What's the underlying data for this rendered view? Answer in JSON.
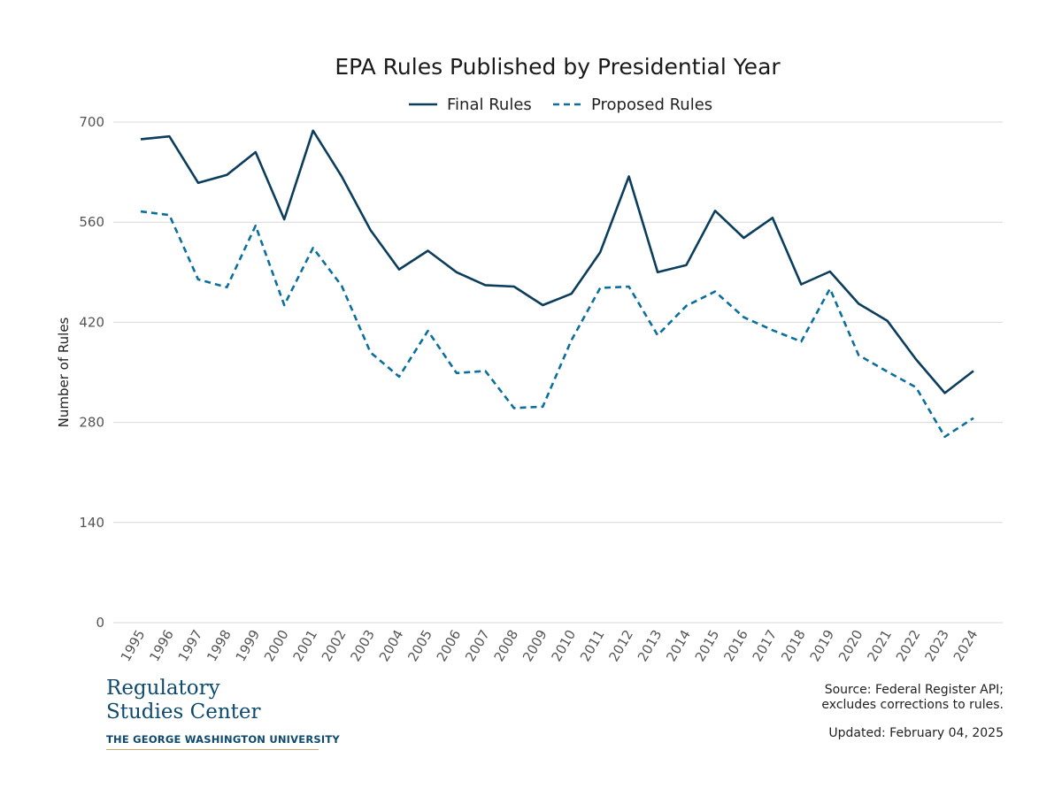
{
  "chart_data": {
    "type": "line",
    "title": "EPA Rules Published by Presidential Year",
    "ylabel": "Number of Rules",
    "xlabel": "",
    "ylim": [
      0,
      700
    ],
    "yticks": [
      0,
      140,
      280,
      420,
      560,
      700
    ],
    "grid": true,
    "legend_position": "top-center",
    "categories": [
      "1995",
      "1996",
      "1997",
      "1998",
      "1999",
      "2000",
      "2001",
      "2002",
      "2003",
      "2004",
      "2005",
      "2006",
      "2007",
      "2008",
      "2009",
      "2010",
      "2011",
      "2012",
      "2013",
      "2014",
      "2015",
      "2016",
      "2017",
      "2018",
      "2019",
      "2020",
      "2021",
      "2022",
      "2023",
      "2024"
    ],
    "series": [
      {
        "name": "Final Rules",
        "color": "#0b3d5c",
        "style": "solid",
        "values": [
          676,
          680,
          615,
          626,
          658,
          564,
          688,
          624,
          549,
          494,
          520,
          490,
          472,
          470,
          444,
          460,
          518,
          624,
          490,
          500,
          576,
          538,
          566,
          473,
          491,
          446,
          422,
          368,
          321,
          352
        ]
      },
      {
        "name": "Proposed Rules",
        "color": "#0a6f9c",
        "style": "dashed",
        "values": [
          575,
          570,
          480,
          469,
          555,
          444,
          524,
          471,
          378,
          344,
          408,
          349,
          352,
          300,
          302,
          395,
          468,
          470,
          402,
          443,
          463,
          427,
          409,
          393,
          467,
          374,
          351,
          329,
          260,
          286
        ]
      }
    ]
  },
  "footer": {
    "logo_line1": "Regulatory",
    "logo_line2": "Studies Center",
    "logo_university": "THE GEORGE WASHINGTON UNIVERSITY",
    "source_line1": "Source: Federal Register API;",
    "source_line2": "excludes corrections to rules.",
    "updated": "Updated: February 04, 2025"
  }
}
